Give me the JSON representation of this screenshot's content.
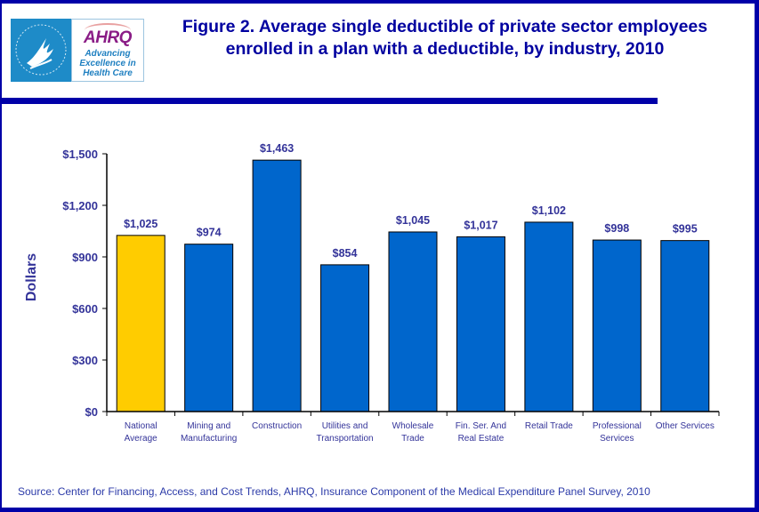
{
  "logo": {
    "hhs_label": "HHS",
    "brand": "AHRQ",
    "tagline": [
      "Advancing",
      "Excellence in",
      "Health Care"
    ]
  },
  "header": {
    "title_line1": "Figure 2. Average single deductible of private sector employees",
    "title_line2": "enrolled in a plan with a deductible, by industry, 2010"
  },
  "colors": {
    "border": "#0000A8",
    "title": "#0000A0",
    "highlight_bar": "#FFCC00",
    "bar": "#0066CC",
    "axis_text": "#333399"
  },
  "chart_data": {
    "type": "bar",
    "title": "Figure 2. Average single deductible of private sector employees enrolled in a plan with a deductible, by industry, 2010",
    "xlabel": "",
    "ylabel": "Dollars",
    "ylim": [
      0,
      1500
    ],
    "yticks": [
      0,
      300,
      600,
      900,
      1200,
      1500
    ],
    "ytick_labels": [
      "$0",
      "$300",
      "$600",
      "$900",
      "$1,200",
      "$1,500"
    ],
    "grid": false,
    "legend": "none",
    "categories": [
      [
        "National",
        "Average"
      ],
      [
        "Mining and",
        "Manufacturing"
      ],
      [
        "Construction"
      ],
      [
        "Utilities and",
        "Transportation"
      ],
      [
        "Wholesale",
        "Trade"
      ],
      [
        "Fin. Ser. And",
        "Real Estate"
      ],
      [
        "Retail Trade"
      ],
      [
        "Professional",
        "Services"
      ],
      [
        "Other Services"
      ]
    ],
    "values": [
      1025,
      974,
      1463,
      854,
      1045,
      1017,
      1102,
      998,
      995
    ],
    "data_labels": [
      "$1,025",
      "$974",
      "$1,463",
      "$854",
      "$1,045",
      "$1,017",
      "$1,102",
      "$998",
      "$995"
    ],
    "highlight_index": 0
  },
  "footer": {
    "source": "Source: Center for Financing, Access, and Cost Trends, AHRQ, Insurance Component of the Medical Expenditure Panel Survey, 2010"
  }
}
